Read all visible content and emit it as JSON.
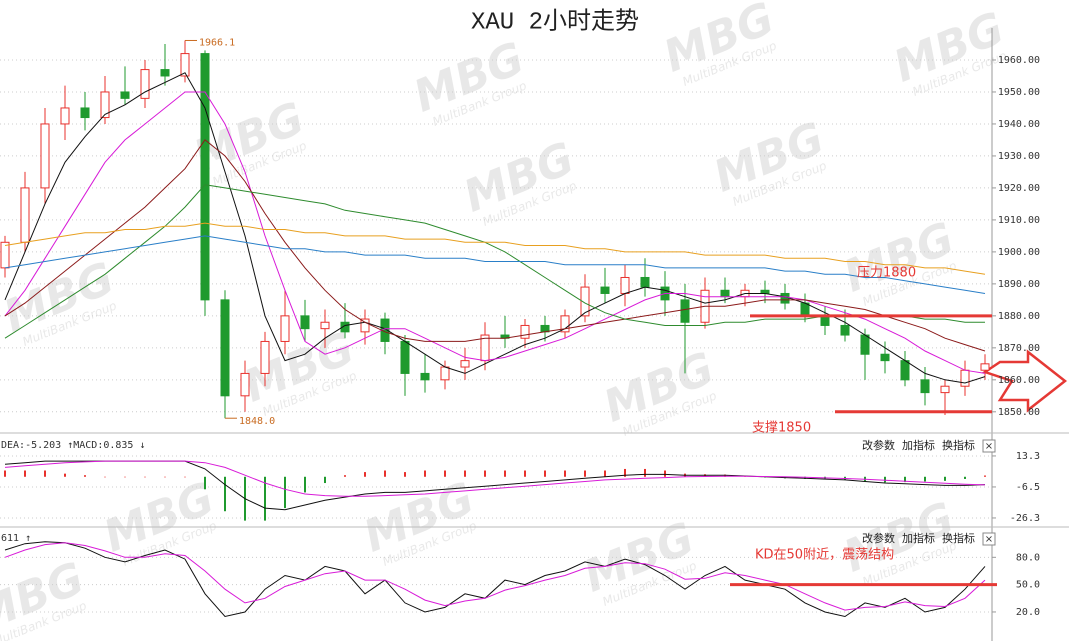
{
  "watermark": {
    "text": "MBG",
    "sub": "MultiBank Group"
  },
  "toolbar": {
    "items": [
      "改参数",
      "加指标",
      "换指标"
    ],
    "close": "×"
  },
  "chart_data": [
    {
      "type": "candlestick",
      "title": "XAU 2小时走势",
      "open": [
        1895,
        1903,
        1920,
        1940,
        1945,
        1942,
        1950,
        1948,
        1957,
        1955,
        1962,
        1885,
        1855,
        1862,
        1872,
        1880,
        1876,
        1878,
        1875,
        1879,
        1872,
        1862,
        1860,
        1864,
        1866,
        1874,
        1873,
        1877,
        1875,
        1880,
        1889,
        1887,
        1892,
        1889,
        1885,
        1878,
        1888,
        1886,
        1888,
        1887,
        1884,
        1880,
        1877,
        1874,
        1868,
        1866,
        1860,
        1856,
        1858,
        1863
      ],
      "high": [
        1905,
        1925,
        1945,
        1952,
        1950,
        1955,
        1958,
        1960,
        1965,
        1966.1,
        1963,
        1888,
        1866,
        1875,
        1888,
        1885,
        1882,
        1884,
        1882,
        1881,
        1874,
        1868,
        1866,
        1870,
        1878,
        1880,
        1879,
        1880,
        1882,
        1893,
        1895,
        1896,
        1898,
        1894,
        1890,
        1892,
        1892,
        1890,
        1891,
        1890,
        1887,
        1883,
        1882,
        1876,
        1872,
        1869,
        1864,
        1860,
        1866,
        1868
      ],
      "low": [
        1892,
        1900,
        1915,
        1935,
        1938,
        1940,
        1946,
        1945,
        1952,
        1953,
        1880,
        1848,
        1850,
        1858,
        1868,
        1872,
        1870,
        1873,
        1871,
        1868,
        1855,
        1856,
        1857,
        1860,
        1863,
        1870,
        1870,
        1872,
        1873,
        1878,
        1884,
        1883,
        1886,
        1880,
        1862,
        1876,
        1884,
        1883,
        1884,
        1882,
        1878,
        1874,
        1872,
        1860,
        1862,
        1858,
        1852,
        1849,
        1855,
        1860
      ],
      "close": [
        1903,
        1920,
        1940,
        1945,
        1942,
        1950,
        1948,
        1957,
        1955,
        1962,
        1885,
        1855,
        1862,
        1872,
        1880,
        1876,
        1878,
        1875,
        1879,
        1872,
        1862,
        1860,
        1864,
        1866,
        1874,
        1873,
        1877,
        1875,
        1880,
        1889,
        1887,
        1892,
        1889,
        1885,
        1878,
        1888,
        1886,
        1888,
        1887,
        1884,
        1880,
        1877,
        1874,
        1868,
        1866,
        1860,
        1856,
        1858,
        1863,
        1865
      ],
      "up_color": "#e8302c",
      "down_color": "#1f9a2e",
      "lines": [
        {
          "color": "#111111",
          "values": [
            1885,
            1900,
            1915,
            1928,
            1936,
            1943,
            1946,
            1950,
            1953,
            1956,
            1945,
            1925,
            1905,
            1880,
            1866,
            1868,
            1873,
            1877,
            1878,
            1876,
            1872,
            1868,
            1864,
            1862,
            1865,
            1868,
            1871,
            1873,
            1876,
            1881,
            1884,
            1887,
            1889,
            1888,
            1886,
            1884,
            1885,
            1887,
            1887,
            1886,
            1884,
            1881,
            1878,
            1874,
            1870,
            1866,
            1862,
            1860,
            1859,
            1861
          ]
        },
        {
          "color": "#d81bd8",
          "values": [
            1880,
            1888,
            1898,
            1908,
            1918,
            1928,
            1935,
            1940,
            1945,
            1950,
            1950,
            1940,
            1925,
            1905,
            1888,
            1872,
            1868,
            1870,
            1873,
            1876,
            1876,
            1873,
            1870,
            1867,
            1866,
            1867,
            1869,
            1871,
            1873,
            1876,
            1879,
            1882,
            1885,
            1887,
            1887,
            1886,
            1886,
            1886,
            1886,
            1886,
            1885,
            1883,
            1881,
            1879,
            1876,
            1873,
            1869,
            1866,
            1863,
            1862
          ]
        },
        {
          "color": "#8b1a1a",
          "values": [
            1880,
            1884,
            1889,
            1894,
            1899,
            1904,
            1909,
            1914,
            1920,
            1926,
            1935,
            1930,
            1922,
            1912,
            1903,
            1895,
            1888,
            1882,
            1878,
            1875,
            1873,
            1872,
            1872,
            1872,
            1873,
            1873,
            1874,
            1875,
            1876,
            1877,
            1878,
            1879,
            1880,
            1881,
            1882,
            1883,
            1883,
            1884,
            1885,
            1885,
            1885,
            1884,
            1883,
            1882,
            1880,
            1878,
            1876,
            1873,
            1871,
            1869
          ]
        },
        {
          "color": "#2e8b2e",
          "values": [
            1873,
            1877,
            1881,
            1885,
            1889,
            1893,
            1898,
            1903,
            1908,
            1914,
            1921,
            1920,
            1919,
            1918,
            1917,
            1916,
            1915,
            1913,
            1912,
            1911,
            1910,
            1909,
            1907,
            1905,
            1903,
            1900,
            1896,
            1892,
            1888,
            1884,
            1881,
            1879,
            1878,
            1877,
            1877,
            1877,
            1878,
            1878,
            1879,
            1879,
            1879,
            1880,
            1880,
            1880,
            1880,
            1880,
            1879,
            1879,
            1878,
            1878
          ]
        },
        {
          "color": "#e8a020",
          "values": [
            1902,
            1903,
            1904,
            1905,
            1906,
            1906,
            1907,
            1907,
            1908,
            1908,
            1909,
            1908,
            1908,
            1907,
            1907,
            1906,
            1906,
            1905,
            1905,
            1905,
            1904,
            1904,
            1904,
            1903,
            1903,
            1903,
            1902,
            1902,
            1902,
            1901,
            1901,
            1900,
            1900,
            1900,
            1900,
            1899,
            1899,
            1899,
            1899,
            1898,
            1898,
            1898,
            1897,
            1897,
            1896,
            1896,
            1895,
            1895,
            1894,
            1893
          ]
        },
        {
          "color": "#2a7fc8",
          "values": [
            1895,
            1896,
            1897,
            1898,
            1899,
            1900,
            1901,
            1902,
            1903,
            1904,
            1905,
            1904,
            1903,
            1902,
            1901,
            1901,
            1900,
            1900,
            1899,
            1899,
            1899,
            1898,
            1898,
            1898,
            1897,
            1897,
            1897,
            1897,
            1896,
            1896,
            1896,
            1896,
            1896,
            1895,
            1895,
            1895,
            1895,
            1895,
            1895,
            1894,
            1894,
            1893,
            1893,
            1892,
            1892,
            1891,
            1890,
            1889,
            1888,
            1887
          ]
        }
      ],
      "ylim": [
        1844,
        1970
      ],
      "yticks": [
        {
          "value": 1850,
          "label": "1850.00"
        },
        {
          "value": 1860,
          "label": "1860.00"
        },
        {
          "value": 1870,
          "label": "1870.00"
        },
        {
          "value": 1880,
          "label": "1880.00"
        },
        {
          "value": 1890,
          "label": "1890.00"
        },
        {
          "value": 1900,
          "label": "1900.00"
        },
        {
          "value": 1910,
          "label": "1910.00"
        },
        {
          "value": 1920,
          "label": "1920.00"
        },
        {
          "value": 1930,
          "label": "1930.00"
        },
        {
          "value": 1940,
          "label": "1940.00"
        },
        {
          "value": 1950,
          "label": "1950.00"
        },
        {
          "value": 1960,
          "label": "1960.00"
        }
      ],
      "grid": true,
      "levels": [
        {
          "value": 1880,
          "label": "压力1880"
        },
        {
          "value": 1850,
          "label": "支撑1850"
        }
      ],
      "level_color": "#e53935",
      "extremes": [
        {
          "value": 1966.1,
          "label": "1966.1"
        },
        {
          "value": 1848,
          "label": "1848.0"
        }
      ]
    },
    {
      "type": "macd",
      "header": "DEA:-5.203 ↑MACD:0.835 ↓",
      "series": [
        {
          "color": "#111111",
          "values": [
            8,
            9,
            10,
            10,
            10,
            10,
            10,
            10,
            10,
            10,
            5,
            -5,
            -14,
            -20,
            -21,
            -18,
            -15,
            -13,
            -11,
            -10,
            -10,
            -9,
            -8,
            -7,
            -6,
            -5,
            -4,
            -3,
            -2,
            -1,
            0,
            1,
            1.5,
            1.5,
            1,
            1,
            1,
            0.5,
            0,
            -0.5,
            -1,
            -1.5,
            -2,
            -3,
            -4,
            -4.5,
            -5,
            -5.5,
            -5.5,
            -5
          ]
        },
        {
          "color": "#d81bd8",
          "values": [
            6,
            7,
            8,
            9,
            9.5,
            10,
            10,
            10,
            10,
            10,
            9,
            6,
            1,
            -4,
            -8,
            -11,
            -12,
            -12.5,
            -12.5,
            -12,
            -11.5,
            -11,
            -10,
            -9,
            -8,
            -7,
            -6,
            -5,
            -4,
            -3,
            -2,
            -1.5,
            -1,
            -0.5,
            0,
            0.2,
            0.3,
            0.3,
            0.2,
            0,
            -0.3,
            -0.7,
            -1.1,
            -1.6,
            -2.2,
            -2.8,
            -3.5,
            -4.2,
            -4.8,
            -5.2
          ]
        }
      ],
      "bars": {
        "up_color": "#e8302c",
        "down_color": "#1f9a2e",
        "values": [
          4,
          4,
          4,
          2,
          1,
          0,
          0,
          0,
          0,
          0,
          -8,
          -22,
          -28,
          -28,
          -20,
          -10,
          -4,
          1,
          3,
          4,
          3,
          4,
          4,
          4,
          4,
          4,
          4,
          4,
          4,
          4,
          4,
          5,
          5,
          4,
          2,
          1.6,
          1.4,
          0.4,
          -0.4,
          -1,
          -1.4,
          -1.6,
          -1.8,
          -2.8,
          -3.6,
          -3.4,
          -3,
          -2.6,
          -1.4,
          0.8
        ]
      },
      "ylim": [
        -30.8,
        25.4
      ],
      "yticks": [
        13.3,
        -6.5,
        -26.3
      ],
      "grid": true
    },
    {
      "type": "line",
      "header": "611 ↑",
      "series": [
        {
          "color": "#111111",
          "values": [
            88,
            95,
            97,
            96,
            90,
            80,
            75,
            82,
            88,
            78,
            40,
            15,
            20,
            45,
            60,
            55,
            70,
            65,
            40,
            55,
            30,
            20,
            25,
            40,
            35,
            55,
            50,
            60,
            65,
            75,
            70,
            78,
            72,
            60,
            45,
            60,
            70,
            55,
            50,
            45,
            30,
            20,
            15,
            30,
            25,
            35,
            20,
            25,
            45,
            70
          ]
        },
        {
          "color": "#d81bd8",
          "values": [
            80,
            88,
            94,
            96,
            93,
            87,
            80,
            80,
            84,
            82,
            65,
            45,
            30,
            35,
            48,
            55,
            62,
            65,
            55,
            55,
            45,
            33,
            27,
            32,
            35,
            44,
            49,
            55,
            60,
            68,
            70,
            74,
            73,
            67,
            56,
            57,
            63,
            60,
            55,
            50,
            40,
            30,
            22,
            25,
            26,
            31,
            27,
            26,
            35,
            55
          ]
        }
      ],
      "ylim": [
        -2,
        110
      ],
      "yticks": [
        {
          "value": 80,
          "label": "80.0"
        },
        {
          "value": 50,
          "label": "50.0"
        },
        {
          "value": 20,
          "label": "20.0"
        }
      ],
      "grid": true,
      "levels": [
        {
          "value": 50,
          "label": "KD在50附近，震荡结构"
        }
      ],
      "level_color": "#e53935"
    }
  ]
}
